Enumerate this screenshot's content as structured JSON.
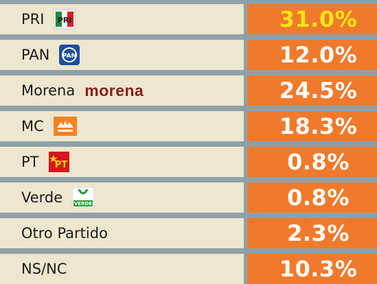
{
  "chart_data": {
    "type": "table",
    "columns": [
      "party",
      "value"
    ],
    "rows": [
      {
        "party": "PRI",
        "value": "31.0%",
        "logo": "pri-logo"
      },
      {
        "party": "PAN",
        "value": "12.0%",
        "logo": "pan-logo"
      },
      {
        "party": "Morena",
        "value": "24.5%",
        "logo": "morena-logo",
        "logo_text": "morena"
      },
      {
        "party": "MC",
        "value": "18.3%",
        "logo": "mc-logo"
      },
      {
        "party": "PT",
        "value": "0.8%",
        "logo": "pt-logo",
        "logo_text": "PT"
      },
      {
        "party": "Verde",
        "value": "0.8%",
        "logo": "verde-logo",
        "logo_text": "VERDE"
      },
      {
        "party": "Otro Partido",
        "value": "2.3%"
      },
      {
        "party": "NS/NC",
        "value": "10.3%"
      }
    ],
    "values": [
      31.0,
      12.0,
      24.5,
      18.3,
      0.8,
      0.8,
      2.3,
      10.3
    ],
    "colors": {
      "label_background": "#efe6cf",
      "value_background": "#f07a2b",
      "value_text": "#ffffff",
      "highlight_value_text": "#f7e318",
      "separator": "#8fa1a8"
    }
  }
}
